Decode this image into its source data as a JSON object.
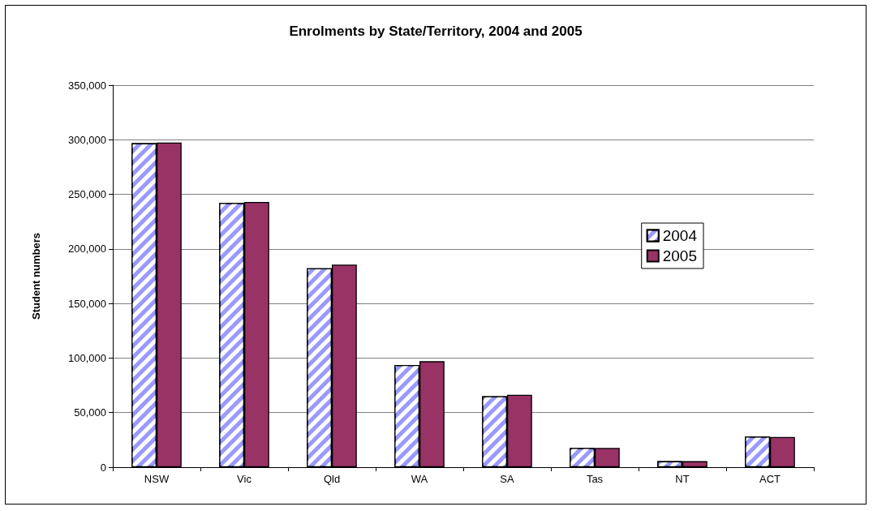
{
  "chart_data": {
    "type": "bar",
    "title": "Enrolments by State/Territory, 2004 and 2005",
    "ylabel": "Student numbers",
    "categories": [
      "NSW",
      "Vic",
      "Qld",
      "WA",
      "SA",
      "Tas",
      "NT",
      "ACT"
    ],
    "series": [
      {
        "name": "2004",
        "color": "#9999ff",
        "values": [
          296800,
          242100,
          182300,
          93700,
          65100,
          17700,
          5500,
          28000
        ]
      },
      {
        "name": "2005",
        "color": "#993366",
        "values": [
          297500,
          243000,
          185600,
          97100,
          66300,
          17700,
          5500,
          27700
        ]
      }
    ],
    "ylim": [
      0,
      350000
    ],
    "yticks": [
      0,
      {
        "value": 50000,
        "label": "50,000"
      },
      {
        "value": 100000,
        "label": "100,000"
      },
      {
        "value": 150000,
        "label": "150,000"
      },
      {
        "value": 200000,
        "label": "200,000"
      },
      {
        "value": 250000,
        "label": "250,000"
      },
      {
        "value": 300000,
        "label": "300,000"
      },
      {
        "value": 350000,
        "label": "350,000"
      }
    ],
    "grid": "y",
    "legend": "right"
  }
}
